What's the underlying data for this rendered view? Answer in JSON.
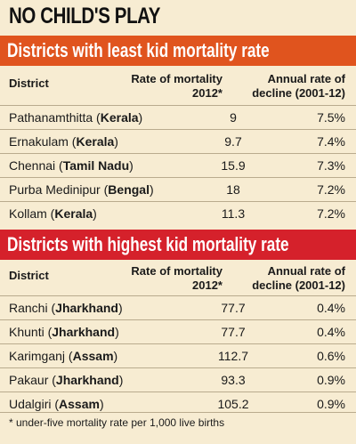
{
  "title": "NO CHILD'S PLAY",
  "chart_data": [
    {
      "type": "table",
      "title": "Districts with least kid mortality rate",
      "columns": [
        "District",
        "Rate of mortality 2012*",
        "Annual rate of decline (2001-12)"
      ],
      "rows": [
        {
          "district": "Pathanamthitta",
          "state": "Kerala",
          "rate": "9",
          "decline": "7.5%"
        },
        {
          "district": "Ernakulam",
          "state": "Kerala",
          "rate": "9.7",
          "decline": "7.4%"
        },
        {
          "district": "Chennai",
          "state": "Tamil Nadu",
          "rate": "15.9",
          "decline": "7.3%"
        },
        {
          "district": "Purba Medinipur",
          "state": "Bengal",
          "rate": "18",
          "decline": "7.2%"
        },
        {
          "district": "Kollam",
          "state": "Kerala",
          "rate": "11.3",
          "decline": "7.2%"
        }
      ]
    },
    {
      "type": "table",
      "title": "Districts with highest kid mortality rate",
      "columns": [
        "District",
        "Rate of mortality 2012*",
        "Annual rate of decline (2001-12)"
      ],
      "rows": [
        {
          "district": "Ranchi",
          "state": "Jharkhand",
          "rate": "77.7",
          "decline": "0.4%"
        },
        {
          "district": "Khunti",
          "state": "Jharkhand",
          "rate": "77.7",
          "decline": "0.4%"
        },
        {
          "district": "Karimganj",
          "state": "Assam",
          "rate": "112.7",
          "decline": "0.6%"
        },
        {
          "district": "Pakaur",
          "state": "Jharkhand",
          "rate": "93.3",
          "decline": "0.9%"
        },
        {
          "district": "Udalgiri",
          "state": "Assam",
          "rate": "105.2",
          "decline": "0.9%"
        }
      ]
    }
  ],
  "header_labels": {
    "district": "District",
    "rate_line1": "Rate of mortality",
    "rate_line2": "2012*",
    "decline_line1": "Annual rate of",
    "decline_line2": "decline (2001-12)"
  },
  "footnote": "* under-five mortality rate per 1,000 live births",
  "colors": {
    "background": "#f7ecd2",
    "least_banner": "#e0541e",
    "highest_banner": "#d5212b"
  }
}
